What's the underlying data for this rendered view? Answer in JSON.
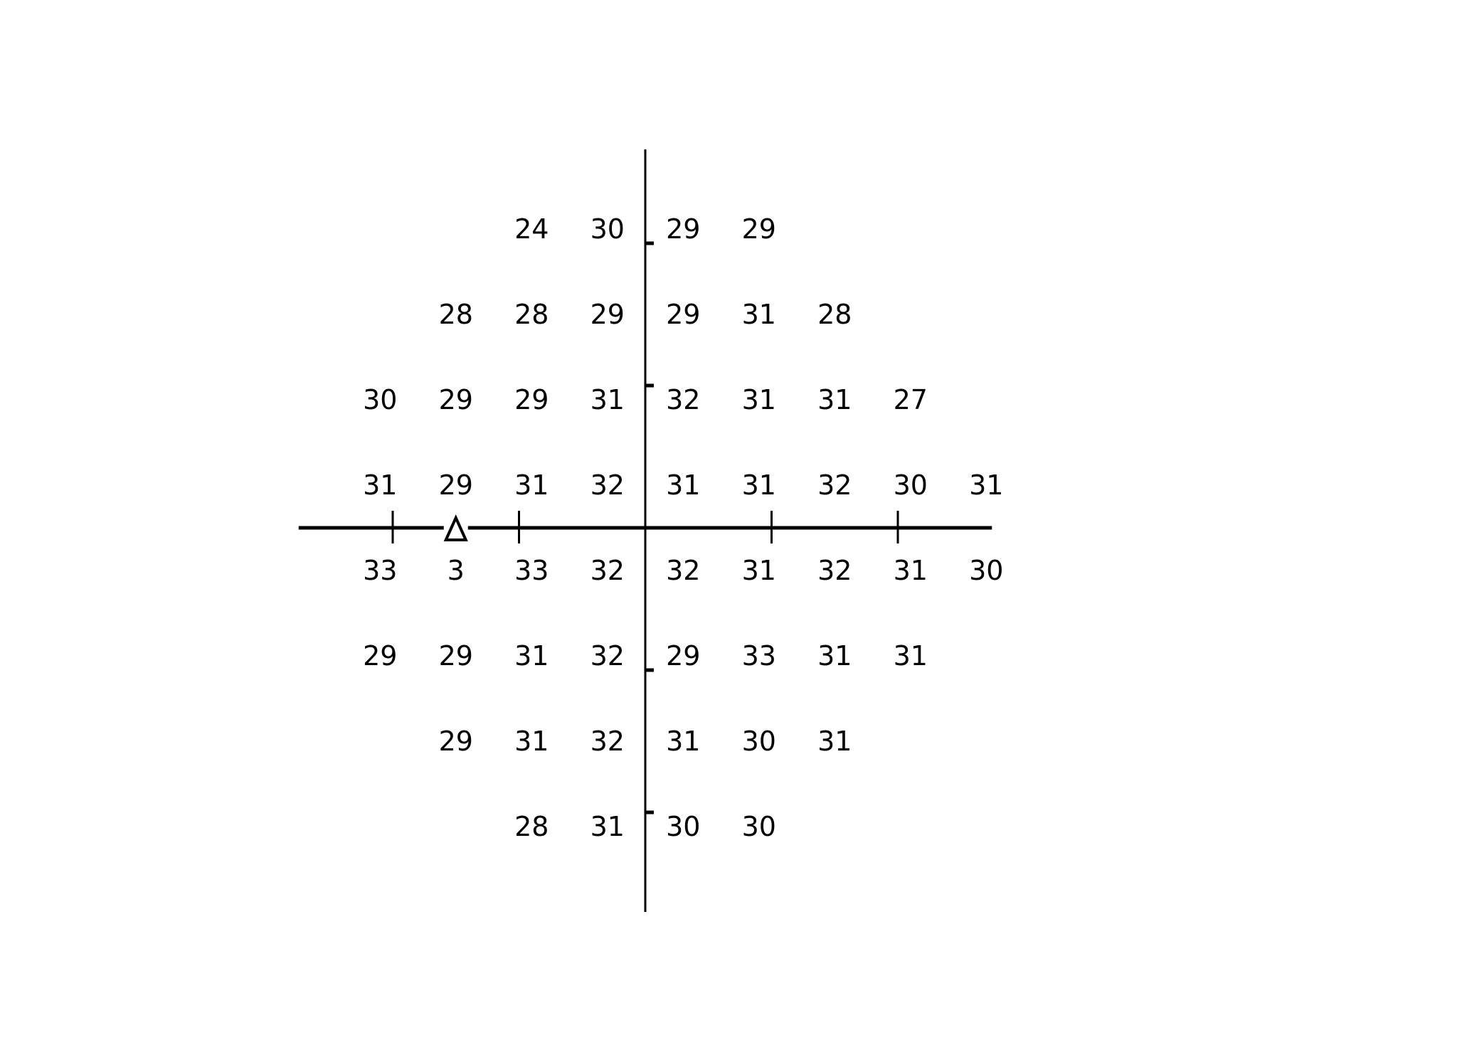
{
  "chart_data": {
    "type": "table",
    "grid_step": 6,
    "axis_tick_step": 10,
    "axis_extent": [
      -27,
      27
    ],
    "line_color": "#000000",
    "marker": {
      "shape": "triangle-outline",
      "x": -15,
      "y": 0
    },
    "rows": [
      {
        "y": 21,
        "cells": [
          {
            "x": -9,
            "v": "24"
          },
          {
            "x": -3,
            "v": "30"
          },
          {
            "x": 3,
            "v": "29"
          },
          {
            "x": 9,
            "v": "29"
          }
        ]
      },
      {
        "y": 15,
        "cells": [
          {
            "x": -15,
            "v": "28"
          },
          {
            "x": -9,
            "v": "28"
          },
          {
            "x": -3,
            "v": "29"
          },
          {
            "x": 3,
            "v": "29"
          },
          {
            "x": 9,
            "v": "31"
          },
          {
            "x": 15,
            "v": "28"
          }
        ]
      },
      {
        "y": 9,
        "cells": [
          {
            "x": -21,
            "v": "30"
          },
          {
            "x": -15,
            "v": "29"
          },
          {
            "x": -9,
            "v": "29"
          },
          {
            "x": -3,
            "v": "31"
          },
          {
            "x": 3,
            "v": "32"
          },
          {
            "x": 9,
            "v": "31"
          },
          {
            "x": 15,
            "v": "31"
          },
          {
            "x": 21,
            "v": "27"
          }
        ]
      },
      {
        "y": 3,
        "cells": [
          {
            "x": -21,
            "v": "31"
          },
          {
            "x": -15,
            "v": "29"
          },
          {
            "x": -9,
            "v": "31"
          },
          {
            "x": -3,
            "v": "32"
          },
          {
            "x": 3,
            "v": "31"
          },
          {
            "x": 9,
            "v": "31"
          },
          {
            "x": 15,
            "v": "32"
          },
          {
            "x": 21,
            "v": "30"
          },
          {
            "x": 27,
            "v": "31"
          }
        ]
      },
      {
        "y": -3,
        "cells": [
          {
            "x": -21,
            "v": "33"
          },
          {
            "x": -15,
            "v": "3"
          },
          {
            "x": -9,
            "v": "33"
          },
          {
            "x": -3,
            "v": "32"
          },
          {
            "x": 3,
            "v": "32"
          },
          {
            "x": 9,
            "v": "31"
          },
          {
            "x": 15,
            "v": "32"
          },
          {
            "x": 21,
            "v": "31"
          },
          {
            "x": 27,
            "v": "30"
          }
        ]
      },
      {
        "y": -9,
        "cells": [
          {
            "x": -21,
            "v": "29"
          },
          {
            "x": -15,
            "v": "29"
          },
          {
            "x": -9,
            "v": "31"
          },
          {
            "x": -3,
            "v": "32"
          },
          {
            "x": 3,
            "v": "29"
          },
          {
            "x": 9,
            "v": "33"
          },
          {
            "x": 15,
            "v": "31"
          },
          {
            "x": 21,
            "v": "31"
          }
        ]
      },
      {
        "y": -15,
        "cells": [
          {
            "x": -15,
            "v": "29"
          },
          {
            "x": -9,
            "v": "31"
          },
          {
            "x": -3,
            "v": "32"
          },
          {
            "x": 3,
            "v": "31"
          },
          {
            "x": 9,
            "v": "30"
          },
          {
            "x": 15,
            "v": "31"
          }
        ]
      },
      {
        "y": -21,
        "cells": [
          {
            "x": -9,
            "v": "28"
          },
          {
            "x": -3,
            "v": "31"
          },
          {
            "x": 3,
            "v": "30"
          },
          {
            "x": 9,
            "v": "30"
          }
        ]
      }
    ]
  }
}
